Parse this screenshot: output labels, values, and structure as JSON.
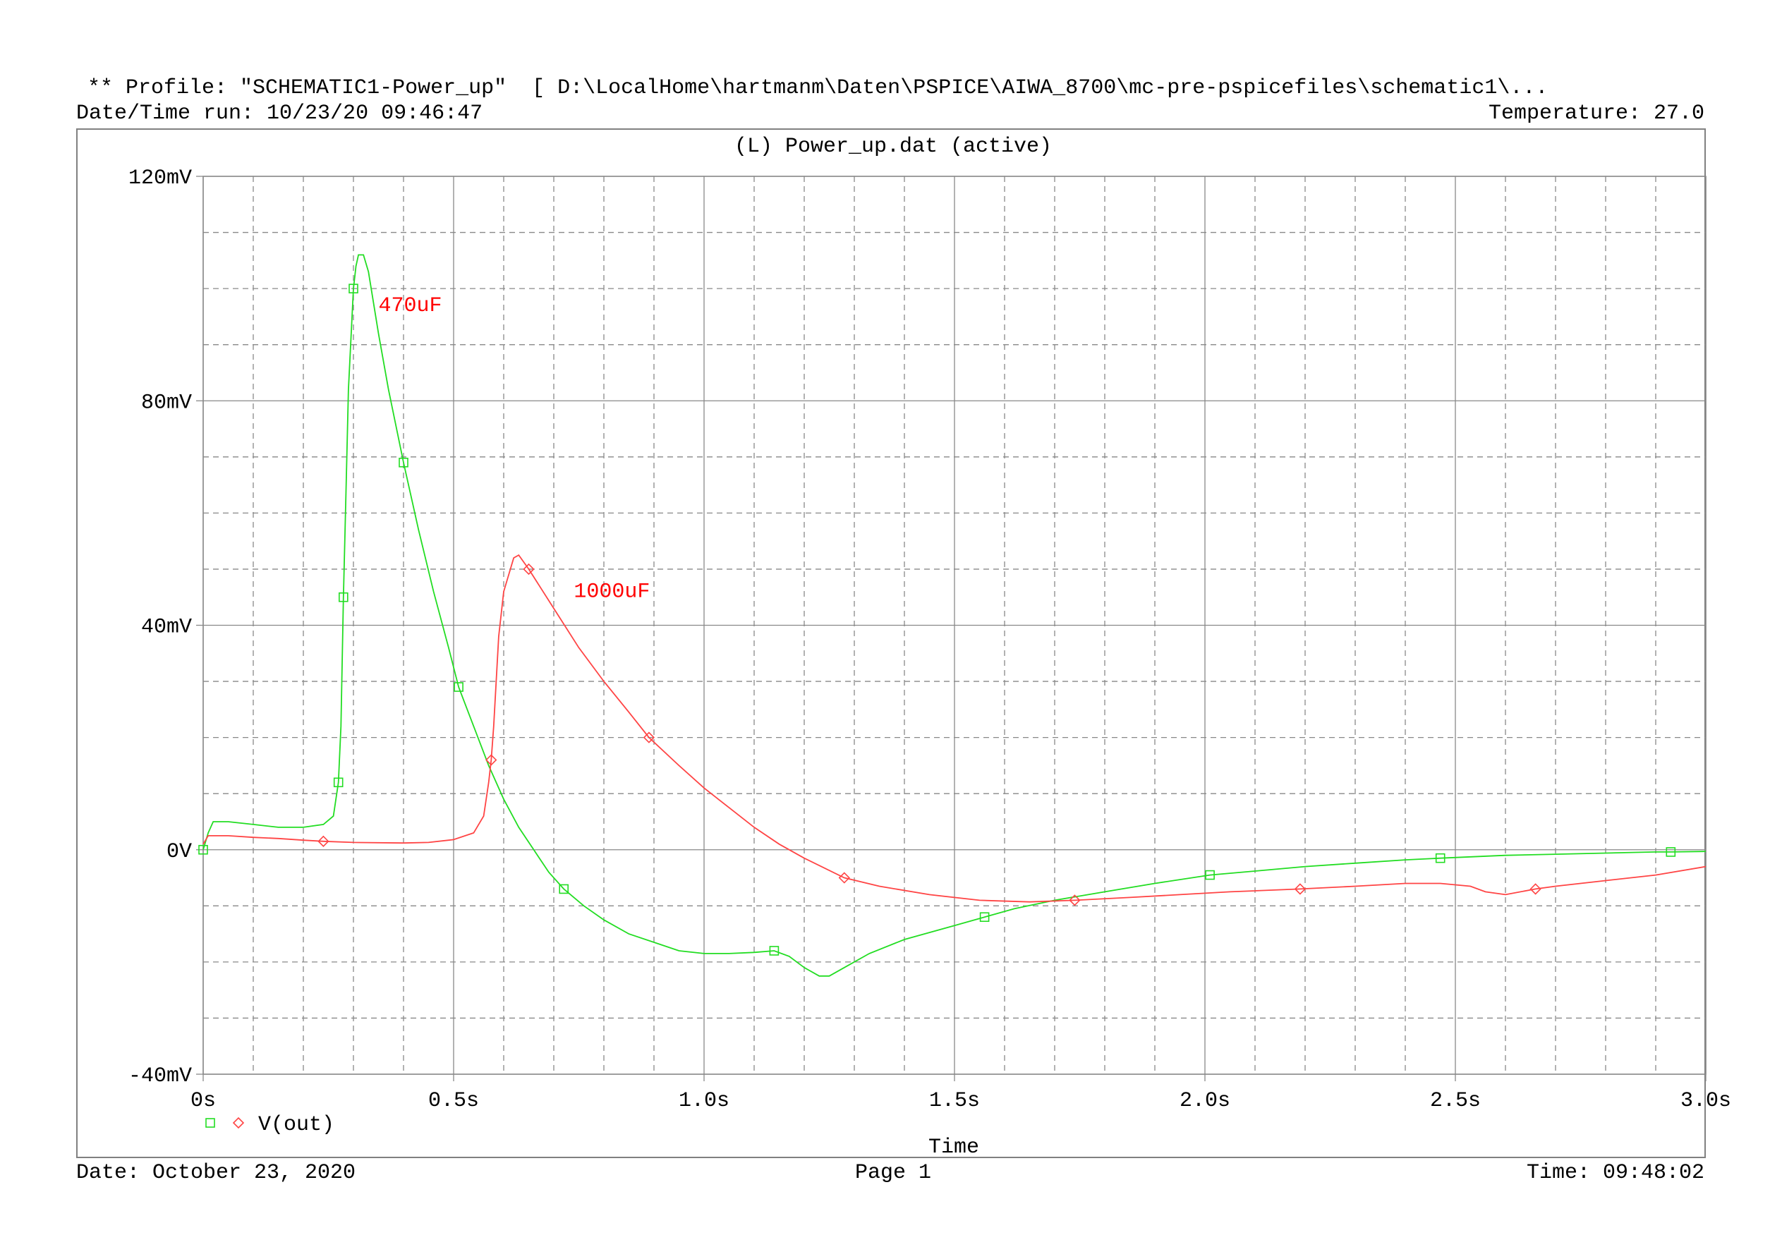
{
  "header": {
    "profile": "** Profile: \"SCHEMATIC1-Power_up\"  [ D:\\LocalHome\\hartmanm\\Daten\\PSPICE\\AIWA_8700\\mc-pre-pspicefiles\\schematic1\\...",
    "datetime_run": "Date/Time run: 10/23/20 09:46:47",
    "temperature": "Temperature: 27.0"
  },
  "footer": {
    "date": "Date: October 23, 2020",
    "page": "Page 1",
    "time": "Time: 09:48:02"
  },
  "chart_data": {
    "type": "line",
    "title": "(L) Power_up.dat (active)",
    "xlabel": "Time",
    "ylabel": "",
    "xlim": [
      0,
      3.0
    ],
    "ylim": [
      -40,
      120
    ],
    "x_units": "s",
    "y_units": "mV",
    "x_ticks": [
      {
        "value": 0,
        "label": "0s"
      },
      {
        "value": 0.5,
        "label": "0.5s"
      },
      {
        "value": 1.0,
        "label": "1.0s"
      },
      {
        "value": 1.5,
        "label": "1.5s"
      },
      {
        "value": 2.0,
        "label": "2.0s"
      },
      {
        "value": 2.5,
        "label": "2.5s"
      },
      {
        "value": 3.0,
        "label": "3.0s"
      }
    ],
    "y_ticks": [
      {
        "value": 120,
        "label": "120mV"
      },
      {
        "value": 80,
        "label": "80mV"
      },
      {
        "value": 40,
        "label": "40mV"
      },
      {
        "value": 0,
        "label": "0V"
      },
      {
        "value": -40,
        "label": "-40mV"
      }
    ],
    "grid": true,
    "legend": {
      "label": "V(out)",
      "placement": "bottom-left"
    },
    "annotations": [
      {
        "text": "470uF",
        "x": 0.35,
        "y": 96,
        "color": "#ff0000"
      },
      {
        "text": "1000uF",
        "x": 0.74,
        "y": 45,
        "color": "#ff0000"
      }
    ],
    "series": [
      {
        "color": "#22dd22",
        "marker": "square",
        "points": [
          [
            0,
            0
          ],
          [
            0.01,
            3
          ],
          [
            0.02,
            5
          ],
          [
            0.05,
            5
          ],
          [
            0.1,
            4.5
          ],
          [
            0.15,
            4
          ],
          [
            0.2,
            4
          ],
          [
            0.24,
            4.5
          ],
          [
            0.26,
            6
          ],
          [
            0.27,
            12
          ],
          [
            0.275,
            22
          ],
          [
            0.28,
            45
          ],
          [
            0.285,
            63
          ],
          [
            0.29,
            82
          ],
          [
            0.3,
            100
          ],
          [
            0.305,
            104
          ],
          [
            0.31,
            106
          ],
          [
            0.32,
            106
          ],
          [
            0.33,
            103
          ],
          [
            0.35,
            92
          ],
          [
            0.37,
            82
          ],
          [
            0.4,
            69
          ],
          [
            0.43,
            57
          ],
          [
            0.46,
            46
          ],
          [
            0.49,
            36
          ],
          [
            0.51,
            29
          ],
          [
            0.54,
            22
          ],
          [
            0.57,
            15
          ],
          [
            0.6,
            9
          ],
          [
            0.63,
            4
          ],
          [
            0.66,
            0
          ],
          [
            0.69,
            -4
          ],
          [
            0.72,
            -7
          ],
          [
            0.76,
            -10
          ],
          [
            0.8,
            -12.5
          ],
          [
            0.85,
            -15
          ],
          [
            0.9,
            -16.5
          ],
          [
            0.95,
            -18
          ],
          [
            1.0,
            -18.5
          ],
          [
            1.05,
            -18.5
          ],
          [
            1.1,
            -18.3
          ],
          [
            1.14,
            -18
          ],
          [
            1.17,
            -19
          ],
          [
            1.2,
            -21
          ],
          [
            1.23,
            -22.5
          ],
          [
            1.25,
            -22.5
          ],
          [
            1.28,
            -21
          ],
          [
            1.33,
            -18.5
          ],
          [
            1.4,
            -16
          ],
          [
            1.5,
            -13.5
          ],
          [
            1.56,
            -12
          ],
          [
            1.62,
            -10.5
          ],
          [
            1.7,
            -9
          ],
          [
            1.8,
            -7.5
          ],
          [
            1.9,
            -6
          ],
          [
            2.01,
            -4.5
          ],
          [
            2.1,
            -3.8
          ],
          [
            2.2,
            -3
          ],
          [
            2.3,
            -2.4
          ],
          [
            2.4,
            -1.8
          ],
          [
            2.47,
            -1.5
          ],
          [
            2.6,
            -1
          ],
          [
            2.7,
            -0.8
          ],
          [
            2.8,
            -0.6
          ],
          [
            2.9,
            -0.4
          ],
          [
            2.93,
            -0.4
          ],
          [
            3.0,
            -0.3
          ]
        ],
        "markers_x": [
          0.0,
          0.27,
          0.28,
          0.3,
          0.4,
          0.51,
          0.72,
          1.14,
          1.56,
          2.01,
          2.47,
          2.93
        ]
      },
      {
        "color": "#ff4444",
        "marker": "diamond",
        "points": [
          [
            0,
            1
          ],
          [
            0.01,
            2.5
          ],
          [
            0.05,
            2.5
          ],
          [
            0.1,
            2.2
          ],
          [
            0.15,
            2
          ],
          [
            0.2,
            1.7
          ],
          [
            0.24,
            1.5
          ],
          [
            0.3,
            1.3
          ],
          [
            0.4,
            1.2
          ],
          [
            0.45,
            1.3
          ],
          [
            0.5,
            1.8
          ],
          [
            0.54,
            3
          ],
          [
            0.56,
            6
          ],
          [
            0.57,
            12
          ],
          [
            0.575,
            16
          ],
          [
            0.58,
            22
          ],
          [
            0.59,
            38
          ],
          [
            0.6,
            46
          ],
          [
            0.62,
            52
          ],
          [
            0.63,
            52.5
          ],
          [
            0.65,
            50
          ],
          [
            0.7,
            43
          ],
          [
            0.75,
            36
          ],
          [
            0.8,
            30
          ],
          [
            0.85,
            24.5
          ],
          [
            0.89,
            20
          ],
          [
            0.95,
            15
          ],
          [
            1.0,
            11
          ],
          [
            1.05,
            7.5
          ],
          [
            1.1,
            4
          ],
          [
            1.15,
            1
          ],
          [
            1.2,
            -1.5
          ],
          [
            1.28,
            -5
          ],
          [
            1.35,
            -6.5
          ],
          [
            1.45,
            -8
          ],
          [
            1.55,
            -9
          ],
          [
            1.65,
            -9.3
          ],
          [
            1.74,
            -9
          ],
          [
            1.85,
            -8.5
          ],
          [
            1.95,
            -8
          ],
          [
            2.05,
            -7.5
          ],
          [
            2.19,
            -7
          ],
          [
            2.3,
            -6.5
          ],
          [
            2.4,
            -6
          ],
          [
            2.47,
            -6
          ],
          [
            2.53,
            -6.5
          ],
          [
            2.56,
            -7.5
          ],
          [
            2.6,
            -8
          ],
          [
            2.66,
            -7
          ],
          [
            2.7,
            -6.5
          ],
          [
            2.8,
            -5.5
          ],
          [
            2.9,
            -4.5
          ],
          [
            3.0,
            -3
          ]
        ],
        "markers_x": [
          0.24,
          0.575,
          0.65,
          0.89,
          1.28,
          1.74,
          2.19,
          2.66
        ]
      }
    ]
  }
}
